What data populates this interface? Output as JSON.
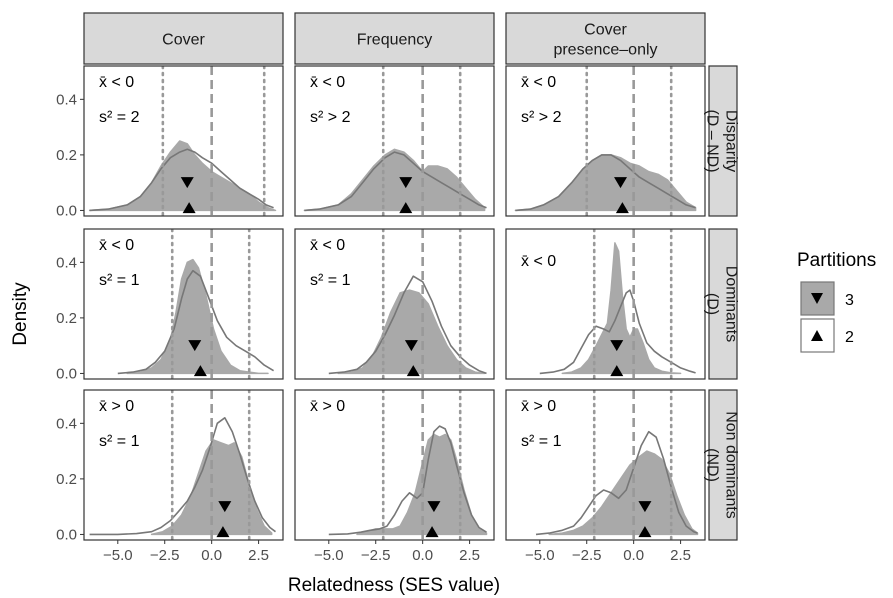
{
  "figure": {
    "y_axis_title": "Density",
    "x_axis_title": "Relatedness (SES value)",
    "legend_title": "Partitions",
    "legend_items": [
      {
        "label": "3",
        "marker": "triangle-down"
      },
      {
        "label": "2",
        "marker": "triangle-up"
      }
    ]
  },
  "colors": {
    "fill": "#a9a9a9",
    "line": "#777777",
    "strip_bg": "#d9d9d9",
    "panel_border": "#333333",
    "ref_line": "#999999"
  },
  "chart_data": {
    "type": "area",
    "facet_columns": [
      "Cover",
      "Frequency",
      "Cover\npresence–only"
    ],
    "facet_rows": [
      "Disparity\n(D – ND)",
      "Dominants\n(D)",
      "Non dominants\n(ND)"
    ],
    "xlim": [
      -6.8,
      3.8
    ],
    "ylim": [
      -0.02,
      0.52
    ],
    "x_ticks": [
      -5.0,
      -2.5,
      0.0,
      2.5
    ],
    "x_tick_labels": [
      "−5.0",
      "−2.5",
      "0.0",
      "2.5"
    ],
    "y_ticks": [
      0.0,
      0.2,
      0.4
    ],
    "y_tick_labels": [
      "0.0",
      "0.2",
      "0.4"
    ],
    "grid": false,
    "legend_position": "right",
    "panels": [
      {
        "row": 0,
        "col": 0,
        "annotations": [
          "x̄ < 0",
          "s² = 2"
        ],
        "ref_lines": [
          -2.6,
          2.8
        ],
        "partition3_fill": {
          "x": [
            -6.5,
            -5.5,
            -4.5,
            -3.8,
            -3.2,
            -2.7,
            -2.2,
            -1.7,
            -1.3,
            -0.9,
            -0.5,
            0,
            0.5,
            1,
            1.5,
            2,
            2.5,
            3,
            3.4
          ],
          "y": [
            0,
            0.005,
            0.02,
            0.05,
            0.1,
            0.16,
            0.21,
            0.25,
            0.24,
            0.2,
            0.17,
            0.14,
            0.12,
            0.1,
            0.08,
            0.06,
            0.03,
            0.01,
            0
          ]
        },
        "partition2_line": {
          "x": [
            -6.5,
            -5.5,
            -4.5,
            -3.8,
            -3.2,
            -2.7,
            -2.2,
            -1.7,
            -1.3,
            -0.9,
            -0.5,
            0,
            0.5,
            1,
            1.5,
            2,
            2.5,
            2.9,
            3.3
          ],
          "y": [
            0,
            0.005,
            0.02,
            0.05,
            0.1,
            0.15,
            0.19,
            0.21,
            0.22,
            0.21,
            0.19,
            0.17,
            0.14,
            0.11,
            0.08,
            0.06,
            0.04,
            0.02,
            0.01
          ]
        },
        "mean_partition3": -1.3,
        "mean_partition2": -1.2
      },
      {
        "row": 0,
        "col": 1,
        "annotations": [
          "x̄ < 0",
          "s² > 2"
        ],
        "ref_lines": [
          -2.1,
          2.0
        ],
        "partition3_fill": {
          "x": [
            -6.3,
            -5.5,
            -4.5,
            -3.8,
            -3.2,
            -2.6,
            -2,
            -1.5,
            -1,
            -0.5,
            0,
            0.3,
            0.8,
            1.3,
            1.8,
            2.3,
            2.8,
            3.3
          ],
          "y": [
            0,
            0.005,
            0.02,
            0.06,
            0.11,
            0.16,
            0.2,
            0.22,
            0.21,
            0.18,
            0.14,
            0.16,
            0.16,
            0.15,
            0.12,
            0.08,
            0.04,
            0.01
          ]
        },
        "partition2_line": {
          "x": [
            -6.3,
            -5.5,
            -4.5,
            -3.8,
            -3.2,
            -2.6,
            -2,
            -1.5,
            -1,
            -0.5,
            0,
            0.5,
            1,
            1.5,
            2,
            2.5,
            3,
            3.4
          ],
          "y": [
            0,
            0.005,
            0.02,
            0.05,
            0.1,
            0.15,
            0.19,
            0.21,
            0.2,
            0.17,
            0.14,
            0.12,
            0.1,
            0.08,
            0.06,
            0.04,
            0.02,
            0.01
          ]
        },
        "mean_partition3": -0.9,
        "mean_partition2": -0.9
      },
      {
        "row": 0,
        "col": 2,
        "annotations": [
          "x̄ < 0",
          "s² > 2"
        ],
        "ref_lines": [
          -2.5,
          2.0
        ],
        "partition3_fill": {
          "x": [
            -6.3,
            -5.5,
            -4.8,
            -4,
            -3.3,
            -2.7,
            -2.2,
            -1.7,
            -1.2,
            -0.7,
            -0.2,
            0.3,
            0.8,
            1.3,
            1.8,
            2.3,
            2.8,
            3.3
          ],
          "y": [
            0,
            0.005,
            0.02,
            0.05,
            0.1,
            0.15,
            0.18,
            0.2,
            0.2,
            0.19,
            0.17,
            0.16,
            0.14,
            0.13,
            0.11,
            0.07,
            0.03,
            0.01
          ]
        },
        "partition2_line": {
          "x": [
            -6.3,
            -5.5,
            -4.8,
            -4,
            -3.3,
            -2.7,
            -2.2,
            -1.7,
            -1.2,
            -0.7,
            -0.2,
            0.3,
            0.8,
            1.3,
            1.8,
            2.3,
            2.8,
            3.3
          ],
          "y": [
            0,
            0.005,
            0.02,
            0.05,
            0.1,
            0.15,
            0.18,
            0.2,
            0.2,
            0.18,
            0.15,
            0.12,
            0.1,
            0.08,
            0.06,
            0.04,
            0.02,
            0.01
          ]
        },
        "mean_partition3": -0.7,
        "mean_partition2": -0.6
      },
      {
        "row": 1,
        "col": 0,
        "annotations": [
          "x̄ < 0",
          "s² = 1"
        ],
        "ref_lines": [
          -2.1,
          2.0
        ],
        "partition3_fill": {
          "x": [
            -4.5,
            -3.8,
            -3.2,
            -2.7,
            -2.2,
            -1.9,
            -1.6,
            -1.3,
            -1,
            -0.7,
            -0.3,
            0.1,
            0.5,
            1,
            1.5,
            2,
            2.5,
            3
          ],
          "y": [
            0,
            0.005,
            0.02,
            0.05,
            0.12,
            0.22,
            0.34,
            0.4,
            0.41,
            0.38,
            0.28,
            0.16,
            0.08,
            0.03,
            0.01,
            0.005,
            0,
            0
          ]
        },
        "partition2_line": {
          "x": [
            -5,
            -4.2,
            -3.5,
            -3,
            -2.5,
            -2,
            -1.6,
            -1.3,
            -1,
            -0.6,
            -0.2,
            0.3,
            0.8,
            1.3,
            1.8,
            2.3,
            2.8,
            3.3
          ],
          "y": [
            0,
            0.005,
            0.015,
            0.04,
            0.08,
            0.16,
            0.27,
            0.34,
            0.37,
            0.35,
            0.28,
            0.19,
            0.13,
            0.1,
            0.08,
            0.06,
            0.03,
            0.01
          ]
        },
        "mean_partition3": -0.9,
        "mean_partition2": -0.6
      },
      {
        "row": 1,
        "col": 1,
        "annotations": [
          "x̄ < 0",
          "s² = 1"
        ],
        "ref_lines": [
          -2.1,
          2.0
        ],
        "partition3_fill": {
          "x": [
            -4.5,
            -3.8,
            -3.2,
            -2.7,
            -2.2,
            -1.7,
            -1.2,
            -0.7,
            -0.2,
            0.3,
            0.8,
            1.3,
            1.8,
            2.3,
            2.8,
            3.3
          ],
          "y": [
            0,
            0.005,
            0.02,
            0.06,
            0.13,
            0.22,
            0.29,
            0.3,
            0.29,
            0.25,
            0.17,
            0.1,
            0.05,
            0.02,
            0.005,
            0
          ]
        },
        "partition2_line": {
          "x": [
            -5,
            -4.2,
            -3.5,
            -3,
            -2.5,
            -2,
            -1.5,
            -1,
            -0.5,
            0,
            0.5,
            1,
            1.5,
            2,
            2.5,
            3,
            3.4
          ],
          "y": [
            0,
            0.005,
            0.015,
            0.04,
            0.08,
            0.14,
            0.21,
            0.29,
            0.35,
            0.33,
            0.26,
            0.17,
            0.1,
            0.06,
            0.03,
            0.01,
            0
          ]
        },
        "mean_partition3": -0.6,
        "mean_partition2": -0.5
      },
      {
        "row": 1,
        "col": 2,
        "annotations": [
          "x̄ < 0"
        ],
        "ref_lines": [
          -2.1,
          2.0
        ],
        "partition3_fill": {
          "x": [
            -3.8,
            -3.3,
            -2.8,
            -2.4,
            -2,
            -1.7,
            -1.4,
            -1.2,
            -1,
            -0.8,
            -0.6,
            -0.4,
            -0.2,
            0,
            0.2,
            0.5,
            0.8,
            1.1,
            1.5,
            2,
            2.5
          ],
          "y": [
            0,
            0.005,
            0.02,
            0.05,
            0.1,
            0.14,
            0.18,
            0.3,
            0.47,
            0.44,
            0.28,
            0.16,
            0.13,
            0.16,
            0.16,
            0.11,
            0.05,
            0.02,
            0.008,
            0.002,
            0
          ]
        },
        "partition2_line": {
          "x": [
            -5,
            -4.3,
            -3.7,
            -3.2,
            -2.8,
            -2.4,
            -2,
            -1.6,
            -1.3,
            -1,
            -0.7,
            -0.4,
            -0.2,
            0,
            0.3,
            0.7,
            1.1,
            1.5,
            2,
            2.5,
            3,
            3.3
          ],
          "y": [
            0,
            0.005,
            0.015,
            0.04,
            0.09,
            0.14,
            0.17,
            0.16,
            0.15,
            0.19,
            0.24,
            0.29,
            0.3,
            0.26,
            0.18,
            0.11,
            0.08,
            0.06,
            0.04,
            0.02,
            0.008,
            0.002
          ]
        },
        "mean_partition3": -0.9,
        "mean_partition2": -0.9
      },
      {
        "row": 2,
        "col": 0,
        "annotations": [
          "x̄ > 0",
          "s² = 1"
        ],
        "ref_lines": [
          -2.1,
          2.0
        ],
        "partition3_fill": {
          "x": [
            -3.2,
            -2.6,
            -2.1,
            -1.6,
            -1.1,
            -0.7,
            -0.3,
            0.1,
            0.5,
            0.9,
            1.2,
            1.6,
            2,
            2.4,
            2.8,
            3.2
          ],
          "y": [
            0,
            0.01,
            0.03,
            0.07,
            0.14,
            0.22,
            0.3,
            0.34,
            0.33,
            0.32,
            0.33,
            0.28,
            0.18,
            0.09,
            0.03,
            0.005
          ]
        },
        "partition2_line": {
          "x": [
            -6.5,
            -5,
            -4,
            -3.2,
            -2.7,
            -2.2,
            -1.8,
            -1.3,
            -0.9,
            -0.5,
            -0.1,
            0.3,
            0.7,
            1.1,
            1.5,
            1.9,
            2.3,
            2.7,
            3.1,
            3.4
          ],
          "y": [
            0,
            0,
            0.003,
            0.01,
            0.025,
            0.05,
            0.08,
            0.12,
            0.17,
            0.23,
            0.31,
            0.4,
            0.42,
            0.37,
            0.29,
            0.2,
            0.12,
            0.06,
            0.025,
            0.01
          ]
        },
        "mean_partition3": 0.7,
        "mean_partition2": 0.6
      },
      {
        "row": 2,
        "col": 1,
        "annotations": [
          "x̄ > 0"
        ],
        "ref_lines": [
          -2.1,
          2.0
        ],
        "partition3_fill": {
          "x": [
            -3.5,
            -3,
            -2.5,
            -2,
            -1.6,
            -1.2,
            -0.8,
            -0.4,
            0,
            0.3,
            0.6,
            0.9,
            1.2,
            1.5,
            1.8,
            2.2,
            2.6,
            3,
            3.4
          ],
          "y": [
            0,
            0.01,
            0.02,
            0.02,
            0.02,
            0.03,
            0.08,
            0.15,
            0.26,
            0.34,
            0.36,
            0.35,
            0.36,
            0.34,
            0.27,
            0.16,
            0.07,
            0.02,
            0.005
          ]
        },
        "partition2_line": {
          "x": [
            -5,
            -4,
            -3.3,
            -2.8,
            -2.3,
            -1.9,
            -1.5,
            -1.1,
            -0.7,
            -0.3,
            0,
            0.3,
            0.6,
            0.9,
            1.2,
            1.5,
            1.8,
            2.2,
            2.6,
            3,
            3.4
          ],
          "y": [
            0,
            0.002,
            0.008,
            0.015,
            0.02,
            0.03,
            0.07,
            0.12,
            0.15,
            0.13,
            0.15,
            0.27,
            0.37,
            0.39,
            0.38,
            0.33,
            0.25,
            0.15,
            0.07,
            0.025,
            0.008
          ]
        },
        "mean_partition3": 0.6,
        "mean_partition2": 0.5
      },
      {
        "row": 2,
        "col": 2,
        "annotations": [
          "x̄ > 0",
          "s² = 1"
        ],
        "ref_lines": [
          -2.1,
          2.0
        ],
        "partition3_fill": {
          "x": [
            -4.5,
            -3.8,
            -3.2,
            -2.7,
            -2.2,
            -1.7,
            -1.2,
            -0.7,
            -0.2,
            0.3,
            0.7,
            1.1,
            1.5,
            1.9,
            2.3,
            2.7,
            3.1,
            3.4
          ],
          "y": [
            0,
            0.005,
            0.015,
            0.03,
            0.06,
            0.1,
            0.15,
            0.2,
            0.25,
            0.28,
            0.3,
            0.29,
            0.27,
            0.22,
            0.14,
            0.07,
            0.02,
            0.005
          ]
        },
        "partition2_line": {
          "x": [
            -5.2,
            -4.5,
            -3.8,
            -3.2,
            -2.8,
            -2.4,
            -2,
            -1.6,
            -1.2,
            -0.8,
            -0.4,
            0,
            0.4,
            0.8,
            1.2,
            1.6,
            2,
            2.4,
            2.8,
            3.2,
            3.4
          ],
          "y": [
            0,
            0.005,
            0.015,
            0.03,
            0.06,
            0.1,
            0.14,
            0.16,
            0.15,
            0.13,
            0.16,
            0.24,
            0.32,
            0.37,
            0.35,
            0.27,
            0.17,
            0.08,
            0.03,
            0.01,
            0.005
          ]
        },
        "mean_partition3": 0.6,
        "mean_partition2": 0.6
      }
    ]
  }
}
